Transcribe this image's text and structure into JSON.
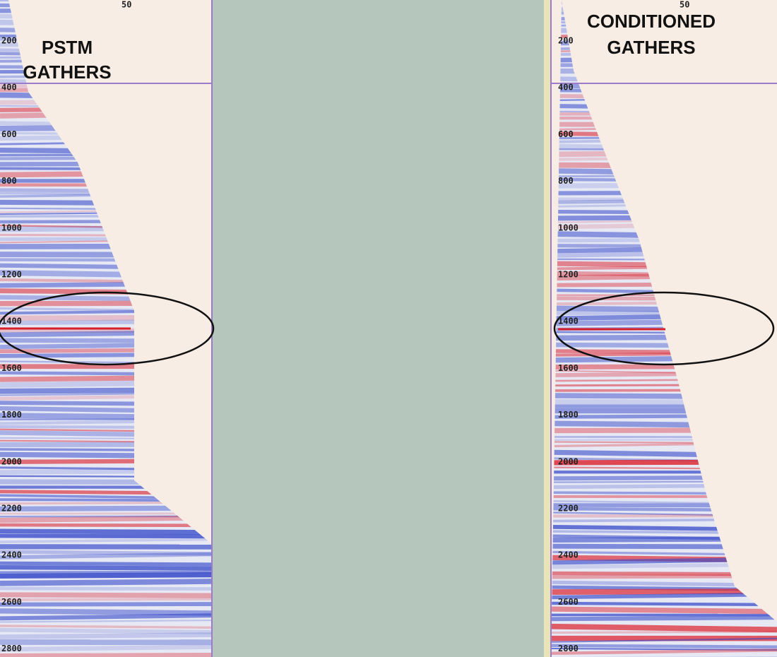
{
  "panels": [
    {
      "title_lines": [
        "PSTM",
        "GATHERS"
      ],
      "offset_label": "50",
      "time_labels": [
        "200",
        "400",
        "600",
        "800",
        "1000",
        "1200",
        "1400",
        "1600",
        "1800",
        "2000",
        "2200",
        "2400",
        "2600",
        "2800"
      ]
    },
    {
      "title_lines": [
        "CONDITIONED",
        "GATHERS"
      ],
      "offset_label": "50",
      "time_labels": [
        "200",
        "400",
        "600",
        "800",
        "1000",
        "1200",
        "1400",
        "1600",
        "1800",
        "2000",
        "2200",
        "2400",
        "2600",
        "2800"
      ]
    }
  ]
}
